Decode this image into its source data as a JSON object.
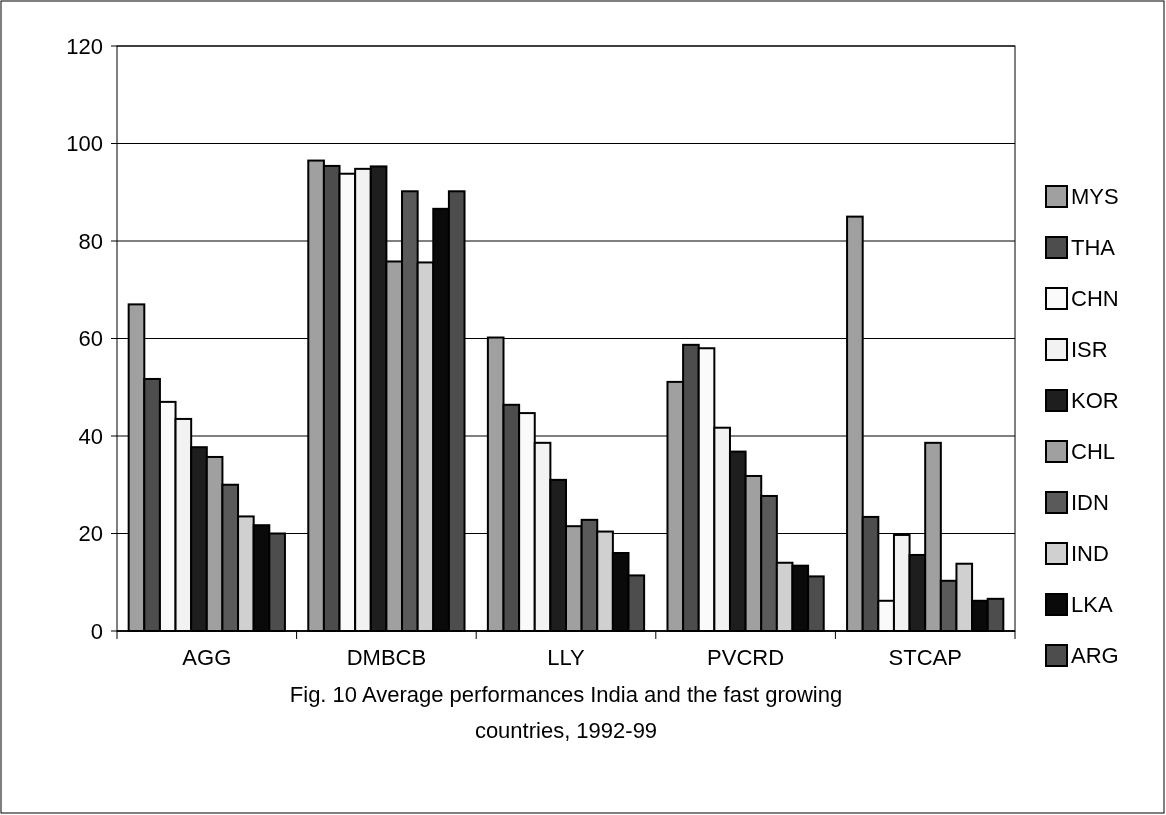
{
  "chart_data": {
    "type": "bar",
    "title": "Fig. 10 Average performances India and the fast growing countries, 1992-99",
    "categories": [
      "AGG",
      "DMBCB",
      "LLY",
      "PVCRD",
      "STCAP"
    ],
    "series": [
      {
        "name": "MYS",
        "color": "#a0a0a0",
        "values": [
          67,
          96.5,
          60.2,
          51.1,
          85
        ]
      },
      {
        "name": "THA",
        "color": "#4d4d4d",
        "values": [
          51.7,
          95.4,
          46.4,
          58.7,
          23.4
        ]
      },
      {
        "name": "CHN",
        "color": "#fafafa",
        "values": [
          47,
          93.8,
          44.7,
          58,
          6.2
        ]
      },
      {
        "name": "ISR",
        "color": "#f2f2f2",
        "values": [
          43.5,
          94.8,
          38.6,
          41.7,
          19.7
        ]
      },
      {
        "name": "KOR",
        "color": "#1e1e1e",
        "values": [
          37.7,
          95.3,
          31,
          36.8,
          15.6
        ]
      },
      {
        "name": "CHL",
        "color": "#a0a0a0",
        "values": [
          35.7,
          75.8,
          21.5,
          31.8,
          38.6
        ]
      },
      {
        "name": "IDN",
        "color": "#5a5a5a",
        "values": [
          30,
          90.2,
          22.8,
          27.7,
          10.3
        ]
      },
      {
        "name": "IND",
        "color": "#d0d0d0",
        "values": [
          23.5,
          75.6,
          20.4,
          14,
          13.8
        ]
      },
      {
        "name": "LKA",
        "color": "#0a0a0a",
        "values": [
          21.7,
          86.6,
          16,
          13.4,
          6.2
        ]
      },
      {
        "name": "ARG",
        "color": "#4d4d4d",
        "values": [
          20,
          90.2,
          11.4,
          11.2,
          6.6
        ]
      }
    ],
    "ylim": [
      0,
      120
    ],
    "yticks": [
      0,
      20,
      40,
      60,
      80,
      100,
      120
    ],
    "grid": "y",
    "legend": "right"
  }
}
